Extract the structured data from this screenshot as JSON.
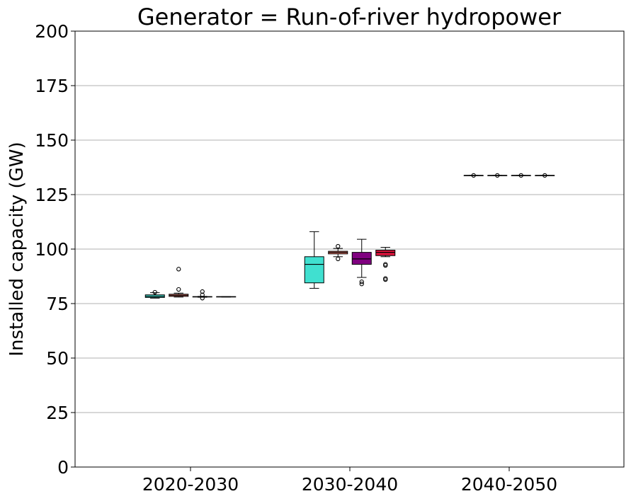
{
  "chart_data": {
    "type": "box",
    "title": "Generator = Run-of-river hydropower",
    "xlabel": "",
    "ylabel": "Installed capacity (GW)",
    "ylim": [
      0,
      200
    ],
    "yticks": [
      0,
      25,
      50,
      75,
      100,
      125,
      150,
      175,
      200
    ],
    "grid": "horizontal",
    "categories": [
      "2020-2030",
      "2030-2040",
      "2040-2050"
    ],
    "series": [
      {
        "color": "#40e0d0",
        "boxes": [
          {
            "whislo": 77.5,
            "q1": 77.8,
            "med": 78.3,
            "q3": 79.0,
            "whishi": 80.0,
            "fliers": [
              80.2
            ]
          },
          {
            "whislo": 82.0,
            "q1": 84.5,
            "med": 93.0,
            "q3": 96.5,
            "whishi": 108.0,
            "fliers": []
          },
          {
            "whislo": 133.8,
            "q1": 133.8,
            "med": 133.8,
            "q3": 133.8,
            "whishi": 133.8,
            "fliers": [
              133.8
            ]
          }
        ]
      },
      {
        "color": "#fa8072",
        "boxes": [
          {
            "whislo": 78.0,
            "q1": 78.3,
            "med": 78.8,
            "q3": 79.3,
            "whishi": 79.8,
            "fliers": [
              81.5,
              90.8
            ]
          },
          {
            "whislo": 96.5,
            "q1": 97.8,
            "med": 98.5,
            "q3": 99.0,
            "whishi": 100.3,
            "fliers": [
              101.3,
              95.5
            ]
          },
          {
            "whislo": 133.8,
            "q1": 133.8,
            "med": 133.8,
            "q3": 133.8,
            "whishi": 133.8,
            "fliers": [
              133.8
            ]
          }
        ]
      },
      {
        "color": "#800080",
        "boxes": [
          {
            "whislo": 77.9,
            "q1": 78.0,
            "med": 78.1,
            "q3": 78.2,
            "whishi": 78.3,
            "fliers": [
              80.5,
              79.0,
              77.5
            ]
          },
          {
            "whislo": 87.0,
            "q1": 93.0,
            "med": 95.5,
            "q3": 98.5,
            "whishi": 104.5,
            "fliers": [
              85.0,
              84.0
            ]
          },
          {
            "whislo": 133.8,
            "q1": 133.8,
            "med": 133.8,
            "q3": 133.8,
            "whishi": 133.8,
            "fliers": [
              133.8
            ]
          }
        ]
      },
      {
        "color": "#dc143c",
        "boxes": [
          {
            "whislo": 78.0,
            "q1": 78.0,
            "med": 78.1,
            "q3": 78.2,
            "whishi": 78.2,
            "fliers": []
          },
          {
            "whislo": 96.5,
            "q1": 97.0,
            "med": 98.5,
            "q3": 99.5,
            "whishi": 100.8,
            "fliers": [
              93.0,
              92.5,
              86.5,
              86.0
            ]
          },
          {
            "whislo": 133.8,
            "q1": 133.8,
            "med": 133.8,
            "q3": 133.8,
            "whishi": 133.8,
            "fliers": [
              133.8
            ]
          }
        ]
      }
    ]
  }
}
